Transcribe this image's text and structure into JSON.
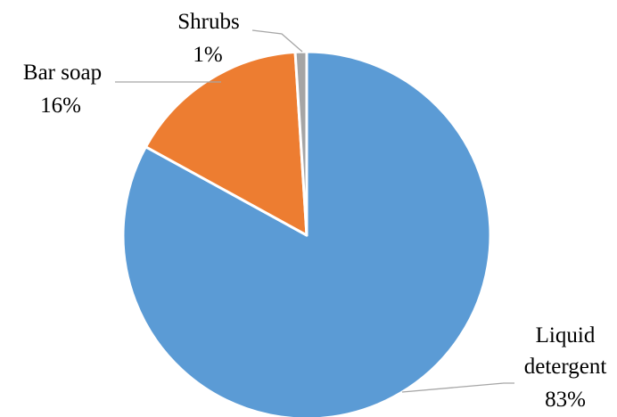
{
  "chart_data": {
    "type": "pie",
    "title": "",
    "slices": [
      {
        "label": "Liquid detergent",
        "value": 83,
        "value_label": "83%",
        "color": "#5b9bd5"
      },
      {
        "label": "Bar soap",
        "value": 16,
        "value_label": "16%",
        "color": "#ed7d31"
      },
      {
        "label": "Shrubs",
        "value": 1,
        "value_label": "1%",
        "color": "#a5a5a5"
      }
    ],
    "start_angle_deg": 0,
    "direction": "clockwise",
    "legend": "none",
    "data_labels": "outside with leader lines"
  }
}
